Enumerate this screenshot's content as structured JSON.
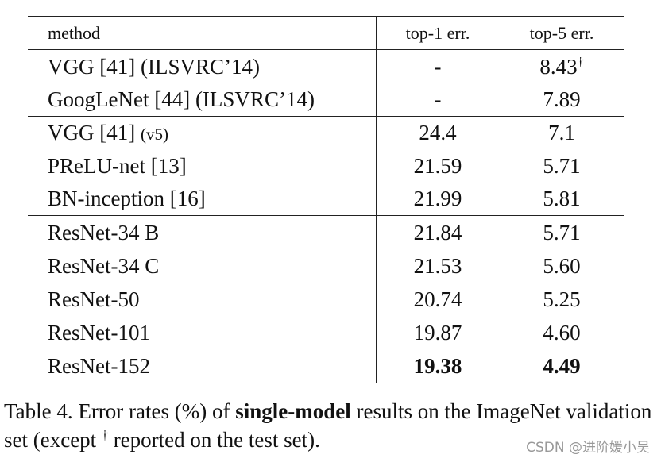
{
  "table": {
    "header": [
      "method",
      "top-1 err.",
      "top-5 err."
    ],
    "rows": [
      [
        "VGG [41] (ILSVRC’14)",
        "-",
        {
          "text": "8.43",
          "sup": "†"
        }
      ],
      [
        "GoogLeNet [44] (ILSVRC’14)",
        "-",
        "7.89"
      ],
      [
        {
          "text": "VGG [41]",
          "small": "(v5)"
        },
        "24.4",
        "7.1"
      ],
      [
        "PReLU-net [13]",
        "21.59",
        "5.71"
      ],
      [
        "BN-inception [16]",
        "21.99",
        "5.81"
      ],
      [
        "ResNet-34 B",
        "21.84",
        "5.71"
      ],
      [
        "ResNet-34 C",
        "21.53",
        "5.60"
      ],
      [
        "ResNet-50",
        "20.74",
        "5.25"
      ],
      [
        "ResNet-101",
        "19.87",
        "4.60"
      ],
      [
        "ResNet-152",
        "19.38",
        "4.49"
      ]
    ]
  },
  "caption": {
    "before": "Table 4. Error rates (%) of ",
    "bold": "single-model",
    "middle": " results on the ImageNet validation set (except ",
    "sup": "†",
    "after": " reported on the test set)."
  },
  "watermark": "CSDN @进阶媛小吴"
}
